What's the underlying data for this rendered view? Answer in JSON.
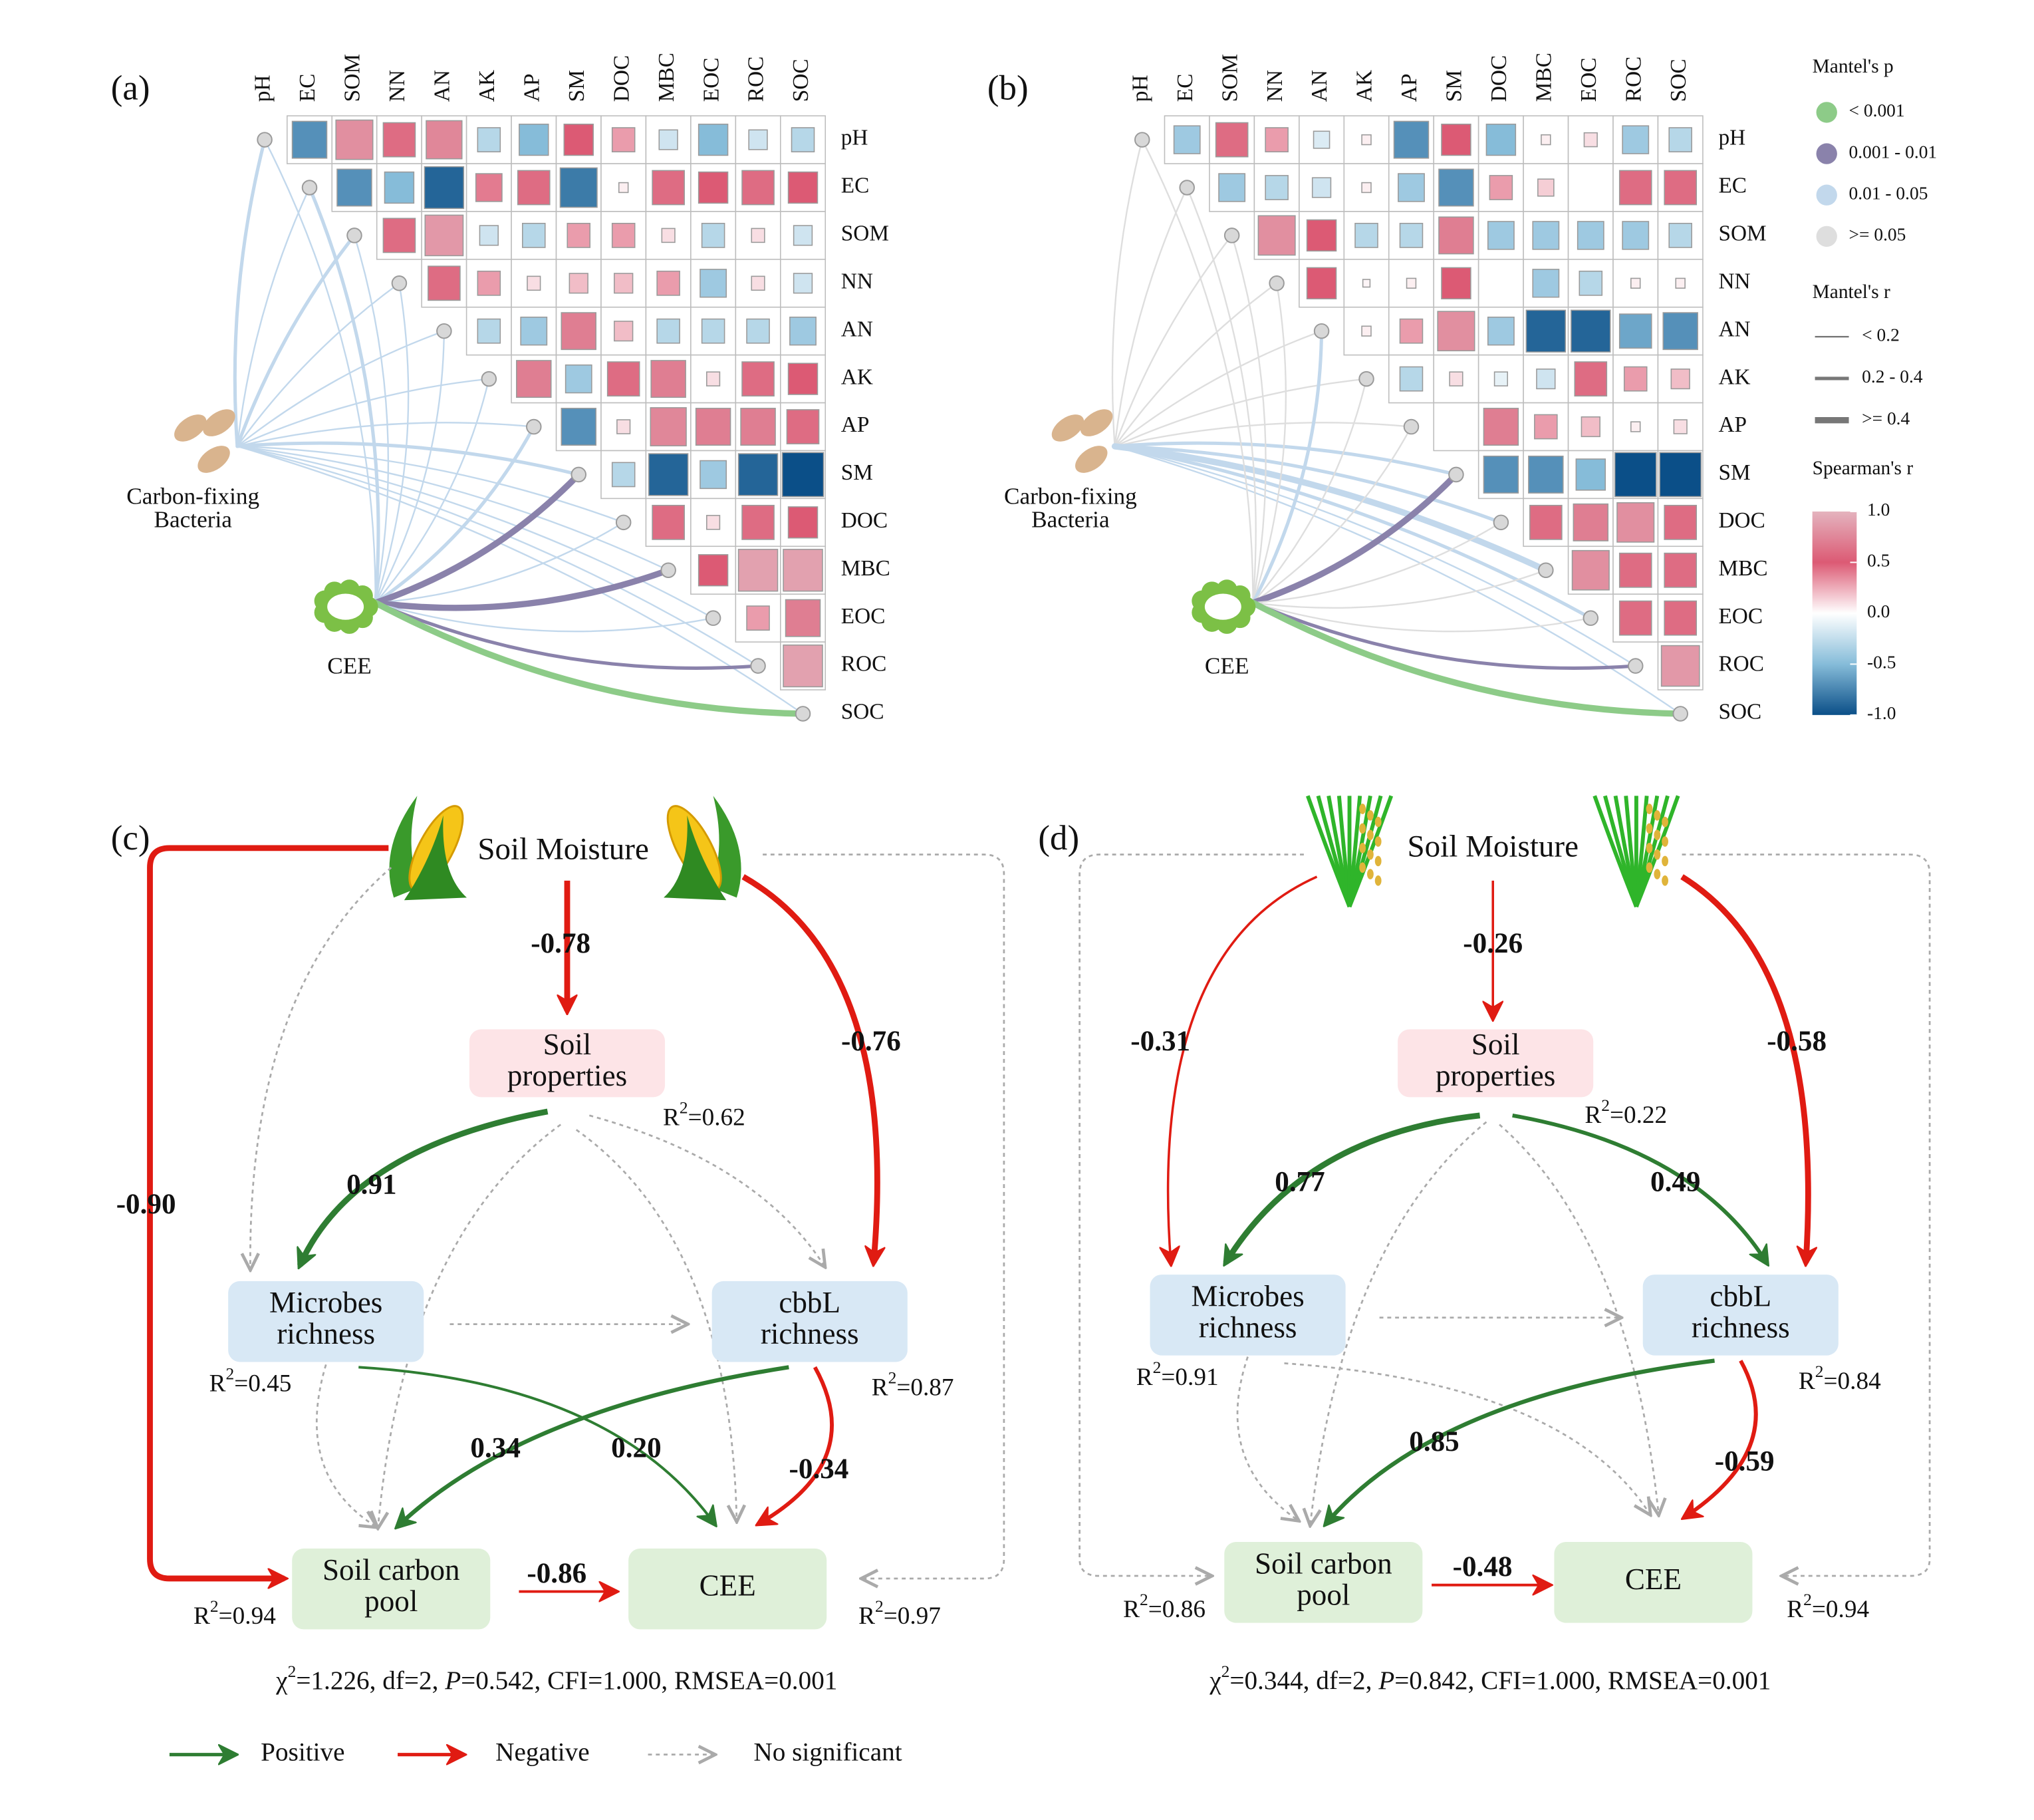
{
  "mantel": {
    "panels": [
      {
        "tag": "(a)",
        "variables": [
          "pH",
          "EC",
          "SOM",
          "NN",
          "AN",
          "AK",
          "AP",
          "SM",
          "DOC",
          "MBC",
          "EOC",
          "ROC",
          "SOC"
        ],
        "matrix": [
          [
            -0.7,
            0.8,
            0.6,
            0.75,
            -0.3,
            -0.5,
            0.5,
            0.3,
            -0.2,
            -0.5,
            -0.2,
            -0.3
          ],
          [
            -0.7,
            -0.5,
            -0.9,
            0.4,
            0.6,
            -0.8,
            0.05,
            0.6,
            0.5,
            0.6,
            0.5
          ],
          [
            0.6,
            0.85,
            -0.2,
            -0.3,
            0.3,
            0.3,
            0.1,
            -0.3,
            0.1,
            -0.2
          ],
          [
            0.6,
            0.3,
            0.1,
            0.2,
            0.2,
            0.3,
            -0.4,
            0.1,
            -0.2
          ],
          [
            -0.3,
            -0.4,
            0.7,
            0.2,
            -0.3,
            -0.3,
            -0.3,
            -0.4
          ],
          [
            0.7,
            -0.4,
            0.6,
            0.7,
            0.1,
            0.6,
            0.5
          ],
          [
            -0.7,
            0.1,
            0.75,
            0.7,
            0.7,
            0.6
          ],
          [
            -0.3,
            -0.9,
            -0.4,
            -0.9,
            -1.0
          ],
          [
            0.6,
            0.1,
            0.6,
            0.5
          ],
          [
            0.5,
            0.9,
            0.9
          ],
          [
            0.3,
            0.7
          ],
          [
            0.9
          ]
        ],
        "bacteria_label": [
          "Carbon-fixing",
          "Bacteria"
        ],
        "cee_label": "CEE",
        "bacteria_links": [
          [
            2,
            1
          ],
          [
            2,
            0
          ],
          [
            2,
            1
          ],
          [
            2,
            0
          ],
          [
            2,
            0
          ],
          [
            2,
            0
          ],
          [
            2,
            0
          ],
          [
            2,
            1
          ],
          [
            2,
            0
          ],
          [
            2,
            0
          ],
          [
            2,
            0
          ],
          [
            2,
            0
          ],
          [
            2,
            0
          ]
        ],
        "cee_links": [
          [
            2,
            0
          ],
          [
            2,
            1
          ],
          [
            2,
            0
          ],
          [
            2,
            0
          ],
          [
            2,
            0
          ],
          [
            2,
            0
          ],
          [
            2,
            1
          ],
          [
            1,
            2
          ],
          [
            2,
            0
          ],
          [
            1,
            2
          ],
          [
            2,
            0
          ],
          [
            1,
            1
          ],
          [
            0,
            2
          ]
        ]
      },
      {
        "tag": "(b)",
        "variables": [
          "pH",
          "EC",
          "SOM",
          "NN",
          "AN",
          "AK",
          "AP",
          "SM",
          "DOC",
          "MBC",
          "EOC",
          "ROC",
          "SOC"
        ],
        "matrix": [
          [
            -0.4,
            0.6,
            0.3,
            -0.15,
            0.05,
            -0.7,
            0.5,
            -0.5,
            0.05,
            0.1,
            -0.4,
            -0.3
          ],
          [
            -0.4,
            -0.3,
            -0.2,
            0.05,
            -0.4,
            -0.7,
            0.3,
            0.15,
            0,
            0.6,
            0.6
          ],
          [
            0.8,
            0.5,
            -0.3,
            -0.3,
            0.7,
            -0.4,
            -0.4,
            -0.4,
            -0.4,
            -0.3
          ],
          [
            0.5,
            0.03,
            0.05,
            0.5,
            0,
            -0.4,
            -0.3,
            0.05,
            0.05
          ],
          [
            0.05,
            0.3,
            0.8,
            -0.4,
            -0.9,
            -0.9,
            -0.6,
            -0.7
          ],
          [
            -0.3,
            0.1,
            -0.1,
            -0.2,
            0.6,
            0.3,
            0.2
          ],
          [
            0,
            0.7,
            0.3,
            0.2,
            0.05,
            0.1
          ],
          [
            -0.7,
            -0.7,
            -0.5,
            -1.0,
            -1.0
          ],
          [
            0.6,
            0.7,
            0.8,
            0.6
          ],
          [
            0.8,
            0.6,
            0.6
          ],
          [
            0.6,
            0.6
          ],
          [
            0.85
          ]
        ],
        "bacteria_label": [
          "Carbon-fixing",
          "Bacteria"
        ],
        "cee_label": "CEE",
        "bacteria_links": [
          [
            3,
            0
          ],
          [
            3,
            0
          ],
          [
            3,
            0
          ],
          [
            3,
            0
          ],
          [
            3,
            0
          ],
          [
            3,
            0
          ],
          [
            3,
            0
          ],
          [
            2,
            1
          ],
          [
            2,
            1
          ],
          [
            2,
            2
          ],
          [
            2,
            1
          ],
          [
            2,
            0
          ],
          [
            2,
            0
          ]
        ],
        "cee_links": [
          [
            3,
            0
          ],
          [
            3,
            0
          ],
          [
            3,
            0
          ],
          [
            3,
            0
          ],
          [
            2,
            1
          ],
          [
            3,
            0
          ],
          [
            3,
            0
          ],
          [
            1,
            2
          ],
          [
            3,
            0
          ],
          [
            3,
            0
          ],
          [
            3,
            0
          ],
          [
            1,
            1
          ],
          [
            0,
            2
          ]
        ]
      }
    ],
    "legend": {
      "p_title": "Mantel's p",
      "p_items": [
        {
          "label": "< 0.001",
          "color": "#8dcb88"
        },
        {
          "label": "0.001 - 0.01",
          "color": "#8a82ab"
        },
        {
          "label": "0.01 - 0.05",
          "color": "#c2d8ec"
        },
        {
          "label": ">= 0.05",
          "color": "#dedede"
        }
      ],
      "r_title": "Mantel's r",
      "r_items": [
        "< 0.2",
        "0.2 - 0.4",
        ">= 0.4"
      ],
      "spearman_title": "Spearman's r",
      "spearman_ticks": [
        {
          "value": 1,
          "label": "1.0"
        },
        {
          "value": 0.5,
          "label": "0.5"
        },
        {
          "value": 0,
          "label": "0.0"
        },
        {
          "value": -0.5,
          "label": "-0.5"
        },
        {
          "value": -1,
          "label": "-1.0"
        }
      ],
      "spearman_colors": [
        "#e4b3be",
        "#dc5a74",
        "#ffffff",
        "#86bcd9",
        "#0b4f88"
      ]
    }
  },
  "sem": {
    "panels": [
      {
        "tag": "(c)",
        "driver": "Soil Moisture",
        "nodes": [
          {
            "label": [
              "Soil",
              "properties"
            ],
            "r2": [
              "R",
              "2",
              "=0.62"
            ]
          },
          {
            "label": [
              "Microbes",
              "richness"
            ],
            "r2": [
              "R",
              "2",
              "=0.45"
            ]
          },
          {
            "label": [
              "cbbL",
              "richness"
            ],
            "r2": [
              "R",
              "2",
              "=0.87"
            ]
          },
          {
            "label": [
              "Soil carbon",
              "pool"
            ],
            "r2": [
              "R",
              "2",
              "=0.94"
            ]
          },
          {
            "label": [
              "CEE"
            ],
            "r2": [
              "R",
              "2",
              "=0.97"
            ]
          }
        ],
        "edges": [
          {
            "label": "-0.78",
            "kind": 1
          },
          {
            "label": "-0.90",
            "kind": 1
          },
          {
            "label": "-0.76",
            "kind": 1
          },
          {
            "kind": 2
          },
          {
            "kind": 2
          },
          {
            "label": "0.91",
            "kind": 0
          },
          {
            "kind": 2
          },
          {
            "kind": 2
          },
          {
            "kind": 2
          },
          {
            "kind": 2
          },
          {
            "kind": 2
          },
          {
            "label": "0.20",
            "kind": 0
          },
          {
            "label": "0.34",
            "kind": 0
          },
          {
            "label": "-0.34",
            "kind": 1
          },
          {
            "label": "-0.86",
            "kind": 1
          }
        ],
        "fit": [
          "χ",
          "2",
          "=1.226, df=2, ",
          "P",
          "=0.542, CFI=1.000, RMSEA=0.001"
        ]
      },
      {
        "tag": "(d)",
        "driver": "Soil Moisture",
        "nodes": [
          {
            "label": [
              "Soil",
              "properties"
            ],
            "r2": [
              "R",
              "2",
              "=0.22"
            ]
          },
          {
            "label": [
              "Microbes",
              "richness"
            ],
            "r2": [
              "R",
              "2",
              "=0.91"
            ]
          },
          {
            "label": [
              "cbbL",
              "richness"
            ],
            "r2": [
              "R",
              "2",
              "=0.84"
            ]
          },
          {
            "label": [
              "Soil carbon",
              "pool"
            ],
            "r2": [
              "R",
              "2",
              "=0.86"
            ]
          },
          {
            "label": [
              "CEE"
            ],
            "r2": [
              "R",
              "2",
              "=0.94"
            ]
          }
        ],
        "edges": [
          {
            "label": "-0.26",
            "kind": 1
          },
          {
            "label": "-0.31",
            "kind": 1
          },
          {
            "label": "-0.58",
            "kind": 1
          },
          {
            "kind": 2
          },
          {
            "kind": 2
          },
          {
            "label": "0.77",
            "kind": 0
          },
          {
            "label": "0.49",
            "kind": 0
          },
          {
            "kind": 2
          },
          {
            "kind": 2
          },
          {
            "kind": 2
          },
          {
            "kind": 2
          },
          {
            "kind": 2
          },
          {
            "label": "0.85",
            "kind": 0
          },
          {
            "label": "-0.59",
            "kind": 1
          },
          {
            "label": "-0.48",
            "kind": 1
          }
        ],
        "fit": [
          "χ",
          "2",
          "=0.344, df=2, ",
          "P",
          "=0.842, CFI=1.000, RMSEA=0.001"
        ]
      }
    ],
    "legend": [
      {
        "label": "Positive",
        "color": "#2e7d32"
      },
      {
        "label": "Negative",
        "color": "#e01b12"
      },
      {
        "label": "No significant",
        "color": "#aaaaaa"
      }
    ]
  }
}
